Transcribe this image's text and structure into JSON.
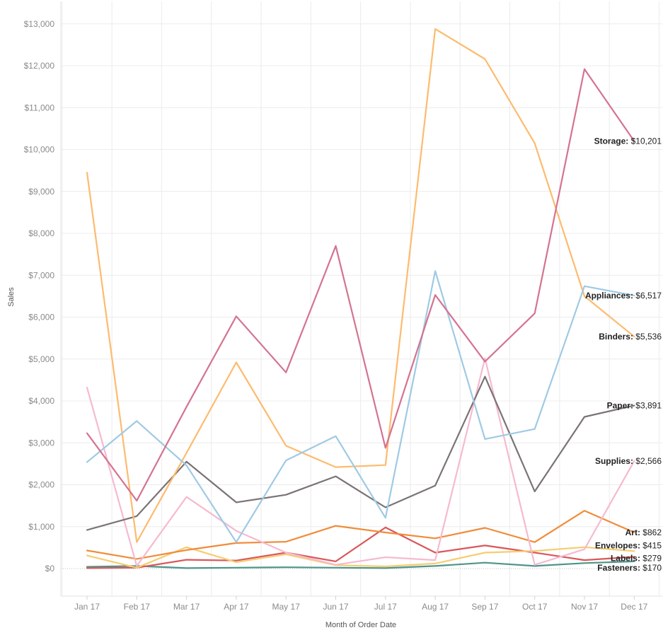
{
  "chart_data": {
    "type": "line",
    "title": "",
    "xlabel": "Month of Order Date",
    "ylabel": "Sales",
    "categories": [
      "Jan 17",
      "Feb 17",
      "Mar 17",
      "Apr 17",
      "May 17",
      "Jun 17",
      "Jul 17",
      "Aug 17",
      "Sep 17",
      "Oct 17",
      "Nov 17",
      "Dec 17"
    ],
    "ylim": [
      -1000,
      13000
    ],
    "yticks": [
      0,
      1000,
      2000,
      3000,
      4000,
      5000,
      6000,
      7000,
      8000,
      9000,
      10000,
      11000,
      12000,
      13000
    ],
    "ytick_labels": [
      "$0",
      "$1,000",
      "$2,000",
      "$3,000",
      "$4,000",
      "$5,000",
      "$6,000",
      "$7,000",
      "$8,000",
      "$9,000",
      "$10,000",
      "$11,000",
      "$12,000",
      "$13,000"
    ],
    "grid": true,
    "legend": "line-end labels",
    "series": [
      {
        "name": "Storage",
        "label_name": "Storage:",
        "label_value": "$10,201",
        "color": "#d4738f",
        "values": [
          3230,
          1620,
          3860,
          6020,
          4680,
          7700,
          2880,
          6530,
          4940,
          6090,
          11920,
          10201
        ]
      },
      {
        "name": "Appliances",
        "label_name": "Appliances:",
        "label_value": "$6,517",
        "color": "#9fcae3",
        "values": [
          2540,
          3520,
          2460,
          630,
          2580,
          3160,
          1210,
          7100,
          3090,
          3330,
          6740,
          6517
        ]
      },
      {
        "name": "Binders",
        "label_name": "Binders:",
        "label_value": "$5,536",
        "color": "#fdbb6f",
        "values": [
          9450,
          630,
          2760,
          4920,
          2930,
          2420,
          2470,
          12880,
          12160,
          10150,
          6500,
          5536
        ]
      },
      {
        "name": "Paper",
        "label_name": "Paper:",
        "label_value": "$3,891",
        "color": "#7a7374",
        "values": [
          920,
          1250,
          2550,
          1580,
          1760,
          2200,
          1460,
          1980,
          4580,
          1840,
          3620,
          3891
        ]
      },
      {
        "name": "Supplies",
        "label_name": "Supplies:",
        "label_value": "$2,566",
        "color": "#f5bad0",
        "values": [
          4320,
          60,
          1710,
          900,
          380,
          90,
          270,
          200,
          5020,
          90,
          460,
          2566
        ]
      },
      {
        "name": "Art",
        "label_name": "Art:",
        "label_value": "$862",
        "color": "#f08c3a",
        "values": [
          430,
          230,
          440,
          610,
          640,
          1020,
          860,
          720,
          970,
          630,
          1380,
          862
        ]
      },
      {
        "name": "Envelopes",
        "label_name": "Envelopes:",
        "label_value": "$415",
        "color": "#f5cd72",
        "values": [
          310,
          20,
          510,
          150,
          340,
          80,
          50,
          120,
          380,
          420,
          510,
          415
        ]
      },
      {
        "name": "Labels",
        "label_name": "Labels:",
        "label_value": "$279",
        "color": "#d95759",
        "values": [
          10,
          20,
          210,
          190,
          380,
          170,
          980,
          380,
          550,
          380,
          200,
          279
        ]
      },
      {
        "name": "Fasteners",
        "label_name": "Fasteners:",
        "label_value": "$170",
        "color": "#4e958a",
        "values": [
          40,
          60,
          10,
          20,
          30,
          20,
          10,
          60,
          140,
          60,
          130,
          170
        ]
      }
    ]
  }
}
